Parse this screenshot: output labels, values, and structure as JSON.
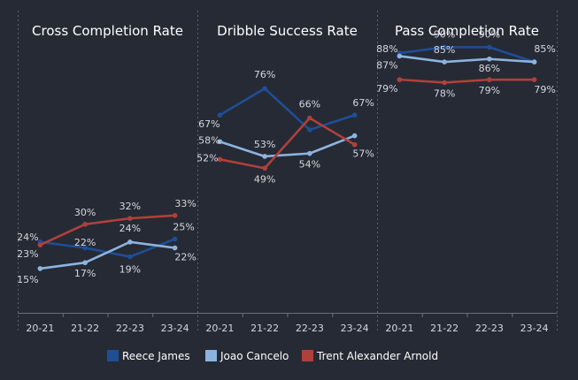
{
  "colors": {
    "background": "#262a35",
    "Reece James": "#1f4e96",
    "Joao Cancelo": "#8db4df",
    "Trent Alexander Arnold": "#b0403b"
  },
  "chart_data": [
    {
      "type": "line",
      "title": "Cross Completion Rate",
      "categories": [
        "20-21",
        "21-22",
        "22-23",
        "23-24"
      ],
      "ylim": [
        0,
        100
      ],
      "series": [
        {
          "name": "Reece James",
          "values": [
            24,
            22,
            19,
            25
          ],
          "labels": [
            "24%",
            "",
            "19%",
            "25%"
          ]
        },
        {
          "name": "Joao Cancelo",
          "values": [
            15,
            17,
            24,
            22
          ],
          "labels": [
            "15%",
            "17%",
            "24%",
            "22%"
          ]
        },
        {
          "name": "Trent Alexander Arnold",
          "values": [
            23,
            30,
            32,
            33
          ],
          "labels": [
            "23%",
            "30%",
            "32%",
            "33%"
          ]
        }
      ],
      "extra_labels": [
        "22%"
      ]
    },
    {
      "type": "line",
      "title": "Dribble Success Rate",
      "categories": [
        "20-21",
        "21-22",
        "22-23",
        "23-24"
      ],
      "ylim": [
        0,
        100
      ],
      "series": [
        {
          "name": "Reece James",
          "values": [
            67,
            76,
            62,
            67
          ],
          "labels": [
            "67%",
            "76%",
            "",
            "67%"
          ]
        },
        {
          "name": "Joao Cancelo",
          "values": [
            58,
            53,
            54,
            60
          ],
          "labels": [
            "58%",
            "53%",
            "54%",
            ""
          ]
        },
        {
          "name": "Trent Alexander Arnold",
          "values": [
            52,
            49,
            66,
            57
          ],
          "labels": [
            "52%",
            "49%",
            "66%",
            "57%"
          ]
        }
      ]
    },
    {
      "type": "line",
      "title": "Pass Completion Rate",
      "categories": [
        "20-21",
        "21-22",
        "22-23",
        "23-24"
      ],
      "ylim": [
        0,
        100
      ],
      "series": [
        {
          "name": "Reece James",
          "values": [
            88,
            90,
            90,
            85
          ],
          "labels": [
            "88%",
            "90%",
            "90%",
            "85%"
          ]
        },
        {
          "name": "Joao Cancelo",
          "values": [
            87,
            85,
            86,
            85
          ],
          "labels": [
            "87%",
            "85%",
            "86%",
            ""
          ]
        },
        {
          "name": "Trent Alexander Arnold",
          "values": [
            79,
            78,
            79,
            79
          ],
          "labels": [
            "79%",
            "78%",
            "79%",
            "79%"
          ]
        }
      ]
    }
  ],
  "legend": {
    "position": "bottom",
    "items": [
      "Reece James",
      "Joao Cancelo",
      "Trent Alexander Arnold"
    ]
  }
}
